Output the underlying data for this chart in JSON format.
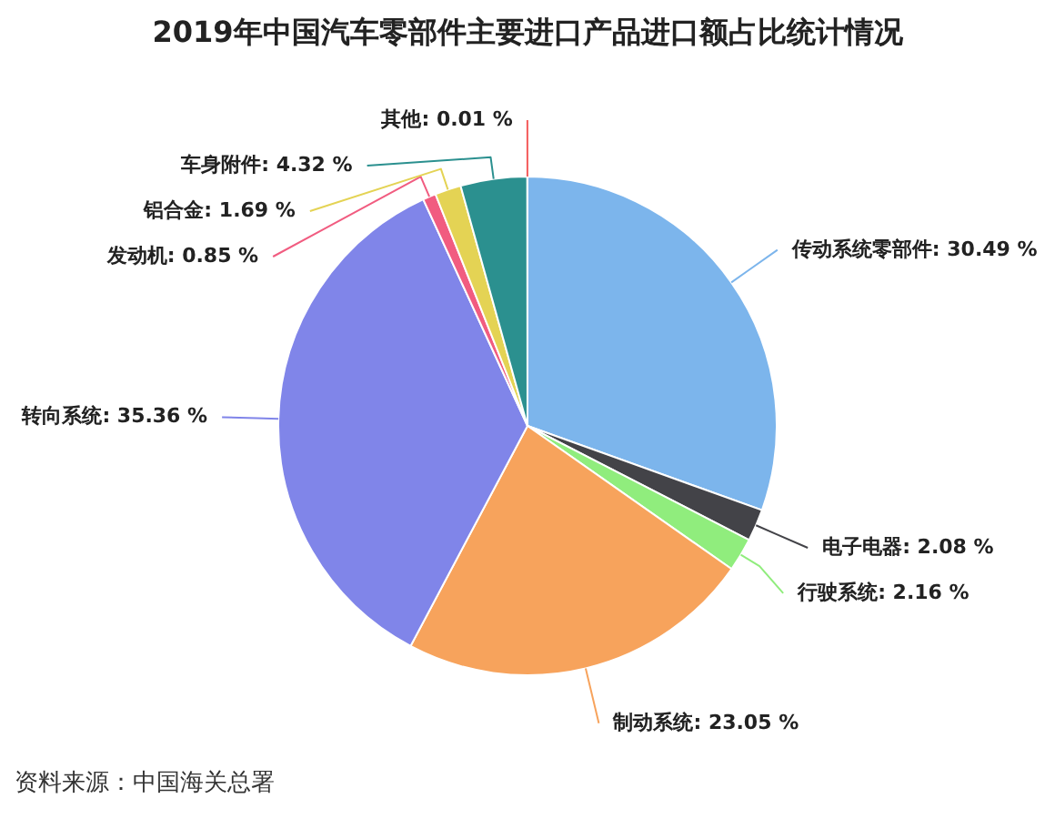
{
  "chart_data": {
    "type": "pie",
    "title": "2019年中国汽车零部件主要进口产品进口额占比统计情况",
    "categories": [
      "传动系统零部件",
      "电子电器",
      "行驶系统",
      "制动系统",
      "转向系统",
      "发动机",
      "铝合金",
      "车身附件",
      "其他"
    ],
    "values": [
      30.49,
      2.08,
      2.16,
      23.05,
      35.36,
      0.85,
      1.69,
      4.32,
      0.01
    ],
    "colors": [
      "#7cb5ec",
      "#434348",
      "#90ed7d",
      "#f7a35c",
      "#8085e9",
      "#f15c80",
      "#e4d354",
      "#2b908f",
      "#f45b5b"
    ],
    "value_labels": [
      "30.49 %",
      "2.08 %",
      "2.16 %",
      "23.05 %",
      "35.36 %",
      "0.85 %",
      "1.69 %",
      "4.32 %",
      "0.01 %"
    ],
    "annotations": [
      "资料来源：中国海关总署"
    ]
  }
}
